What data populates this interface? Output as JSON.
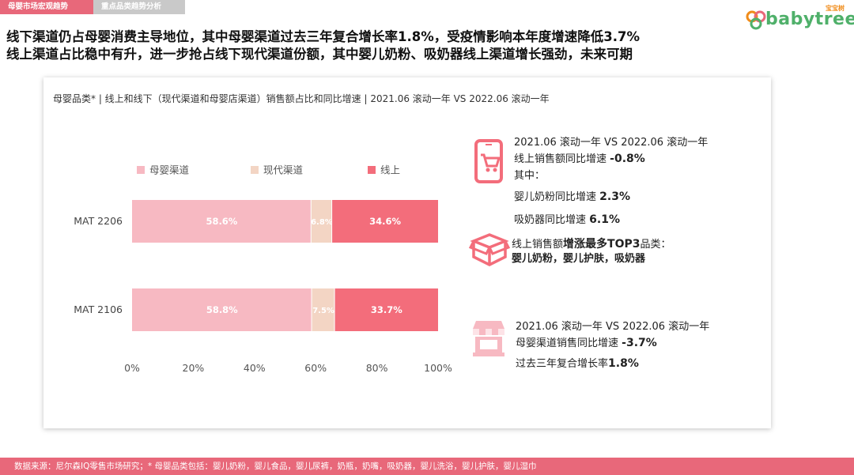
{
  "tabs": [
    "母婴市场宏观趋势",
    "重点品类趋势分析"
  ],
  "logo": {
    "text": "babytree",
    "sub": "宝宝树"
  },
  "headline": {
    "line1": "线下渠道仍占母婴消费主导地位，其中母婴渠道过去三年复合增长率1.8%，受疫情影响本年度增速降低3.7%",
    "line2": "线上渠道占比稳中有升，进一步抢占线下现代渠道份额，其中婴儿奶粉、吸奶器线上渠道增长强劲，未来可期"
  },
  "chart_title": "母婴品类* | 线上和线下（现代渠道和母婴店渠道）销售额占比和同比增速 | 2021.06 滚动一年 VS 2022.06 滚动一年",
  "chart_data": {
    "type": "bar",
    "orientation": "horizontal",
    "stacked": true,
    "percent": true,
    "categories": [
      "MAT 2206",
      "MAT 2106"
    ],
    "series": [
      {
        "name": "母婴渠道",
        "color": "#f7b9c2",
        "values": [
          58.6,
          58.8
        ],
        "labels": [
          "58.6%",
          "58.8%"
        ]
      },
      {
        "name": "现代渠道",
        "color": "#f3d5c4",
        "values": [
          6.8,
          7.5
        ],
        "labels": [
          "6.8%",
          "7.5%"
        ]
      },
      {
        "name": "线上",
        "color": "#f36d7b",
        "values": [
          34.6,
          33.7
        ],
        "labels": [
          "34.6%",
          "33.7%"
        ]
      }
    ],
    "xlim": [
      0,
      100
    ],
    "xticks": [
      "0%",
      "20%",
      "40%",
      "60%",
      "80%",
      "100%"
    ],
    "legend_position": "top",
    "grid": false
  },
  "panel": {
    "block1": {
      "line1": "2021.06 滚动一年 VS 2022.06 滚动一年",
      "line2_prefix": "线上销售额同比增速 ",
      "line2_value": "-0.8%",
      "line3": "其中：",
      "line4_prefix": "婴儿奶粉同比增速 ",
      "line4_value": "2.3%",
      "line5_prefix": "吸奶器同比增速 ",
      "line5_value": "6.1%"
    },
    "block2": {
      "prefix": "线上销售额",
      "bold": "增涨最多TOP3",
      "suffix": "品类：",
      "line2": "婴儿奶粉，婴儿护肤，吸奶器"
    },
    "block3": {
      "line1": "2021.06 滚动一年 VS 2022.06 滚动一年",
      "line2_prefix": "母婴渠道销售同比增速 ",
      "line2_value": "-3.7%",
      "line3_prefix": "过去三年复合增长率",
      "line3_value": "1.8%"
    },
    "icons": [
      "phone-cart-icon",
      "box-icon",
      "store-icon"
    ],
    "accent": "#f36d7b"
  },
  "footer": "数据来源：尼尔森IQ零售市场研究；* 母婴品类包括：婴儿奶粉，婴儿食品，婴儿尿裤，奶瓶，奶嘴，吸奶器，婴儿洗浴，婴儿护肤，婴儿湿巾"
}
